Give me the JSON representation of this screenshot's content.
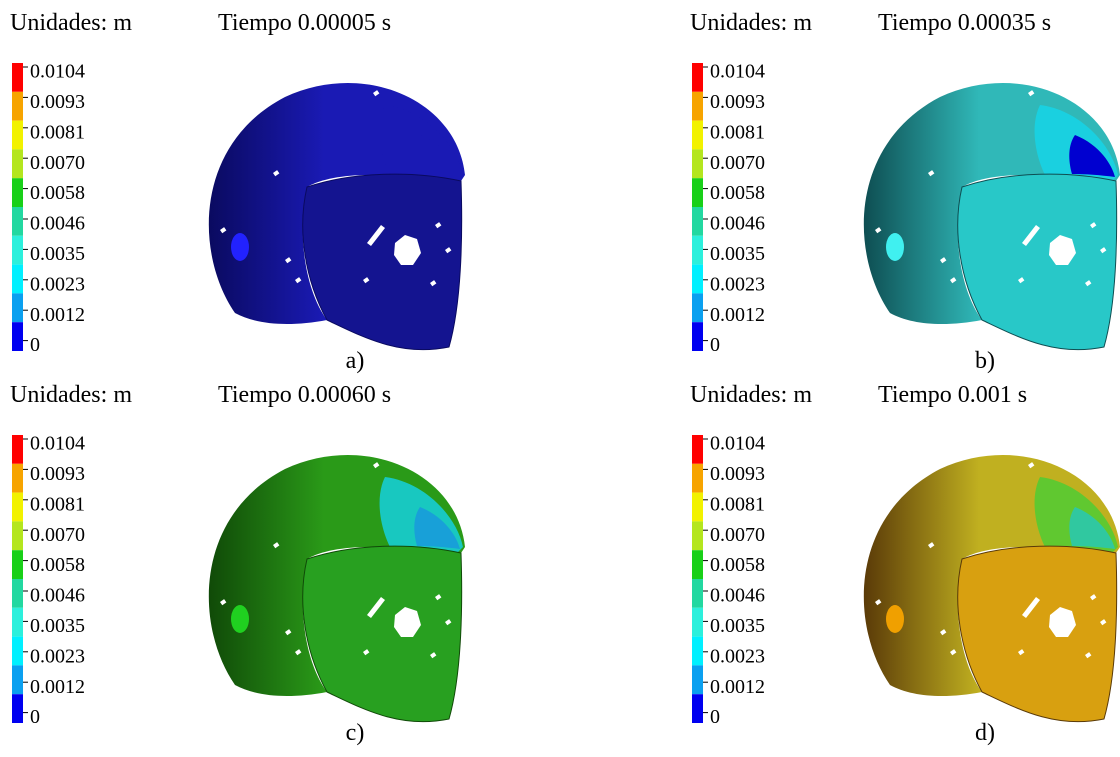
{
  "panels": [
    {
      "units": "Unidades: m",
      "time": "Tiempo 0.00005 s",
      "label": "a)",
      "legend": [
        "0.0104",
        "0.0093",
        "0.0081",
        "0.0070",
        "0.0058",
        "0.0046",
        "0.0035",
        "0.0023",
        "0.0012",
        "0"
      ]
    },
    {
      "units": "Unidades: m",
      "time": "Tiempo 0.00035 s",
      "label": "b)",
      "legend": [
        "0.0104",
        "0.0093",
        "0.0081",
        "0.0070",
        "0.0058",
        "0.0046",
        "0.0035",
        "0.0023",
        "0.0012",
        "0"
      ]
    },
    {
      "units": "Unidades: m",
      "time": "Tiempo 0.00060 s",
      "label": "c)",
      "legend": [
        "0.0104",
        "0.0093",
        "0.0081",
        "0.0070",
        "0.0058",
        "0.0046",
        "0.0035",
        "0.0023",
        "0.0012",
        "0"
      ]
    },
    {
      "units": "Unidades: m",
      "time": "Tiempo 0.001 s",
      "label": "d)",
      "legend": [
        "0.0104",
        "0.0093",
        "0.0081",
        "0.0070",
        "0.0058",
        "0.0046",
        "0.0035",
        "0.0023",
        "0.0012",
        "0"
      ]
    }
  ]
}
